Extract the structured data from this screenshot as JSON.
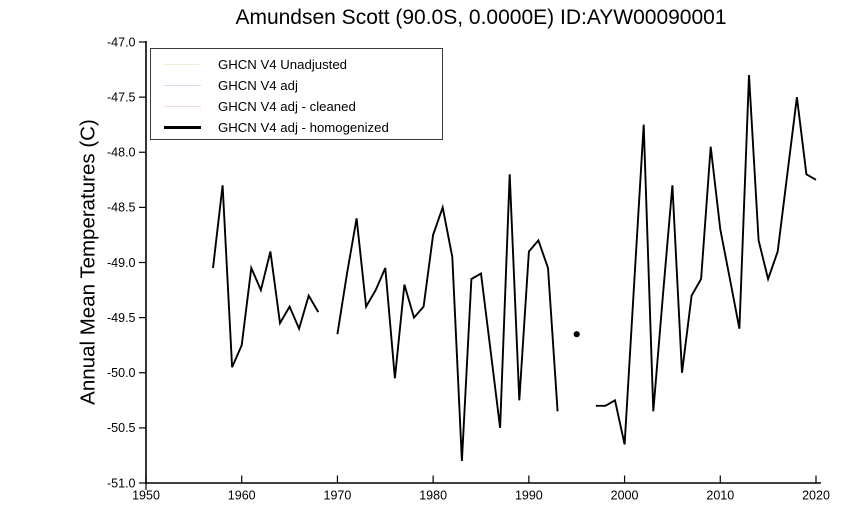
{
  "chart_data": {
    "type": "line",
    "title": "Amundsen Scott (90.0S, 0.0000E) ID:AYW00090001",
    "xlabel": "",
    "ylabel": "Annual Mean Temperatures (C)",
    "xlim": [
      1950,
      2020
    ],
    "ylim": [
      -51.0,
      -47.0
    ],
    "grid": false,
    "legend_position": "upper-left",
    "x_ticks": [
      {
        "v": 1950,
        "label": "1950"
      },
      {
        "v": 1960,
        "label": "1960"
      },
      {
        "v": 1970,
        "label": "1970"
      },
      {
        "v": 1980,
        "label": "1980"
      },
      {
        "v": 1990,
        "label": "1990"
      },
      {
        "v": 2000,
        "label": "2000"
      },
      {
        "v": 2010,
        "label": "2010"
      },
      {
        "v": 2020,
        "label": "2020"
      }
    ],
    "y_ticks": [
      {
        "v": -47.0,
        "label": "-47.0"
      },
      {
        "v": -47.5,
        "label": "-47.5"
      },
      {
        "v": -48.0,
        "label": "-48.0"
      },
      {
        "v": -48.5,
        "label": "-48.5"
      },
      {
        "v": -49.0,
        "label": "-49.0"
      },
      {
        "v": -49.5,
        "label": "-49.5"
      },
      {
        "v": -50.0,
        "label": "-50.0"
      },
      {
        "v": -50.5,
        "label": "-50.5"
      },
      {
        "v": -51.0,
        "label": "-51.0"
      }
    ],
    "legend": [
      {
        "label": "GHCN V4 Unadjusted",
        "color": "#f0efd8"
      },
      {
        "label": "GHCN V4 adj",
        "color": "#d9daf1"
      },
      {
        "label": "GHCN V4 adj - cleaned",
        "color": "#f6dada"
      },
      {
        "label": "GHCN V4 adj - homogenized",
        "color": "#000000"
      }
    ],
    "series": [
      {
        "name": "GHCN V4 adj - homogenized",
        "color": "#000000",
        "segments": [
          [
            [
              1957,
              -49.05
            ],
            [
              1958,
              -48.3
            ],
            [
              1959,
              -49.95
            ],
            [
              1960,
              -49.75
            ],
            [
              1961,
              -49.05
            ],
            [
              1962,
              -49.25
            ],
            [
              1963,
              -48.9
            ],
            [
              1964,
              -49.55
            ],
            [
              1965,
              -49.4
            ],
            [
              1966,
              -49.6
            ],
            [
              1967,
              -49.3
            ],
            [
              1968,
              -49.45
            ]
          ],
          [
            [
              1970,
              -49.65
            ],
            [
              1971,
              -49.1
            ],
            [
              1972,
              -48.6
            ],
            [
              1973,
              -49.4
            ],
            [
              1974,
              -49.25
            ],
            [
              1975,
              -49.05
            ],
            [
              1976,
              -50.05
            ],
            [
              1977,
              -49.2
            ],
            [
              1978,
              -49.5
            ],
            [
              1979,
              -49.4
            ],
            [
              1980,
              -48.75
            ],
            [
              1981,
              -48.5
            ],
            [
              1982,
              -48.95
            ],
            [
              1983,
              -50.8
            ],
            [
              1984,
              -49.15
            ],
            [
              1985,
              -49.1
            ],
            [
              1986,
              -49.8
            ],
            [
              1987,
              -50.5
            ],
            [
              1988,
              -48.2
            ],
            [
              1989,
              -50.25
            ],
            [
              1990,
              -48.9
            ],
            [
              1991,
              -48.8
            ],
            [
              1992,
              -49.05
            ],
            [
              1993,
              -50.35
            ]
          ],
          [
            [
              1997,
              -50.3
            ],
            [
              1998,
              -50.3
            ],
            [
              1999,
              -50.25
            ],
            [
              2000,
              -50.65
            ],
            [
              2001,
              -49.2
            ],
            [
              2002,
              -47.75
            ],
            [
              2003,
              -50.35
            ],
            [
              2004,
              -49.3
            ],
            [
              2005,
              -48.3
            ],
            [
              2006,
              -50.0
            ],
            [
              2007,
              -49.3
            ],
            [
              2008,
              -49.15
            ],
            [
              2009,
              -47.95
            ],
            [
              2010,
              -48.7
            ],
            [
              2011,
              -49.15
            ],
            [
              2012,
              -49.6
            ],
            [
              2013,
              -47.3
            ],
            [
              2014,
              -48.8
            ],
            [
              2015,
              -49.15
            ],
            [
              2016,
              -48.9
            ],
            [
              2017,
              -48.2
            ],
            [
              2018,
              -47.5
            ],
            [
              2019,
              -48.2
            ],
            [
              2020,
              -48.25
            ]
          ]
        ],
        "isolated_points": [
          [
            1995,
            -49.65
          ]
        ]
      }
    ]
  }
}
